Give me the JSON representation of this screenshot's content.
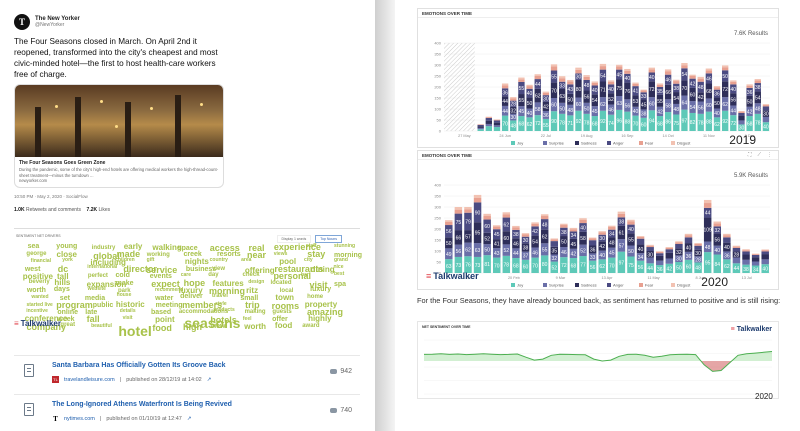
{
  "tweet": {
    "avatar": "T",
    "name": "The New Yorker",
    "handle": "@NewYorker",
    "text": "The Four Seasons closed in March. On April 2nd it reopened, transformed into the city's cheapest and most civic-minded hotel—the first to host health-care workers free of charge.",
    "card_title": "The Four Seasons Goes Green Zone",
    "card_desc": "During the pandemic, some of the city's high-end hotels are offering medical workers the high-thread-count-sheet treatment—minus the turndown ...",
    "card_domain": "newyorker.com",
    "meta": "10:50 PM · May 2, 2020 · SocialFlow",
    "retweets_num": "1.0K",
    "retweets_label": "Retweets and comments",
    "likes_num": "7.2K",
    "likes_label": "Likes"
  },
  "cloud": {
    "label": "SENTIMENT NET DRIVERS",
    "tab_inactive": "Display 1 words",
    "tab_active": "Top Nouns",
    "color": "#a8c24a",
    "words": [
      "sea",
      "george",
      "financial",
      "west",
      "positive",
      "beverly",
      "worth",
      "wanted",
      "started live",
      "incentive",
      "conference",
      "company",
      "young",
      "close",
      "york",
      "dc",
      "tall",
      "hills",
      "days",
      "set",
      "program",
      "online",
      "week",
      "great",
      "industry",
      "global",
      "including",
      "international",
      "perfect",
      "expansion",
      "website",
      "media",
      "public",
      "late",
      "fall",
      "beautiful",
      "early",
      "made",
      "children",
      "director",
      "cold",
      "make",
      "park",
      "house",
      "historic",
      "details",
      "visit",
      "hotel",
      "walking",
      "working",
      "gift",
      "service",
      "events",
      "expect",
      "recommend",
      "water",
      "meeting",
      "based",
      "point",
      "food",
      "space",
      "creek",
      "nights",
      "business",
      "care",
      "hope",
      "luxury",
      "deliver",
      "members",
      "accommodations",
      "seasons",
      "high",
      "access",
      "resorts",
      "country",
      "view",
      "day",
      "features",
      "morning",
      "travel",
      "style",
      "products",
      "hotels",
      "view",
      "real",
      "near",
      "area",
      "offering",
      "check",
      "design",
      "ritz",
      "small",
      "trip",
      "making",
      "feel",
      "worth",
      "experience",
      "views",
      "pool",
      "restaurants",
      "personal",
      "located",
      "local",
      "town",
      "rooms",
      "guests",
      "offer",
      "food",
      "staff",
      "stay",
      "city",
      "dining",
      "bar",
      "visit",
      "luxury",
      "home",
      "property",
      "amazing",
      "highly",
      "award",
      "stunning",
      "morning",
      "grand",
      "nice",
      "best",
      "spa"
    ]
  },
  "brand": {
    "name": "Talkwalker",
    "mark": "≡"
  },
  "articles": [
    {
      "title": "Santa Barbara Has Officially Gotten Its Groove Back",
      "fav": "TL",
      "source": "travelandleisure.com",
      "published": "published on 28/12/19 at 14:02",
      "ext": "↗",
      "count": "942"
    },
    {
      "title": "The Long-Ignored Athens Waterfront Is Being Revived",
      "fav": "T",
      "source": "nytimes.com",
      "published": "published on 01/10/19 at 12:47",
      "ext": "↗",
      "count": "740"
    }
  ],
  "chart1": {
    "title": "EMOTIONS OVER TIME",
    "results": "7.6K Results",
    "year": "2019"
  },
  "chart2": {
    "title": "EMOTIONS OVER TIME",
    "results": "5.9K Results",
    "year": "2020",
    "icons": [
      "expand-icon",
      "chart-type-icon",
      "more-icon"
    ]
  },
  "caption": "For the Four Seasons, they have already bounced back, as sentiment has returned to positive and is still rising:",
  "sentiment": {
    "title": "NET SENTIMENT OVER TIME",
    "year": "2020"
  },
  "chart_data": [
    {
      "type": "bar",
      "title": "EMOTIONS OVER TIME",
      "stacked": true,
      "ylim": [
        0,
        400
      ],
      "yticks": [
        0,
        50,
        100,
        150,
        200,
        250,
        300,
        350,
        400
      ],
      "x_labels": [
        "27 May",
        "24 Jun",
        "22 Jul",
        "19 Aug",
        "16 Sep",
        "14 Oct",
        "11 Nov",
        "9 Dec"
      ],
      "legend": [
        "Joy",
        "Surprise",
        "Sadness",
        "Anger",
        "Fear",
        "Disgust"
      ],
      "colors": [
        "#5ec9b8",
        "#6a6fa8",
        "#2e2e59",
        "#4b4b82",
        "#e8a090",
        "#f2c2b2"
      ],
      "legend_position": "bottom",
      "no_data_region": [
        0,
        3
      ],
      "bars": [
        [
          0,
          0,
          0,
          0,
          0,
          0
        ],
        [
          0,
          0,
          0,
          0,
          0,
          0
        ],
        [
          0,
          0,
          0,
          0,
          0,
          0
        ],
        [
          0,
          0,
          0,
          0,
          0,
          0
        ],
        [
          8,
          6,
          8,
          6,
          2,
          1
        ],
        [
          22,
          10,
          15,
          12,
          4,
          2
        ],
        [
          18,
          8,
          12,
          10,
          3,
          2
        ],
        [
          70,
          44,
          44,
          36,
          14,
          8
        ],
        [
          48,
          30,
          32,
          28,
          10,
          6
        ],
        [
          68,
          45,
          55,
          55,
          12,
          8
        ],
        [
          62,
          40,
          50,
          40,
          12,
          6
        ],
        [
          72,
          58,
          62,
          44,
          14,
          8
        ],
        [
          55,
          36,
          42,
          30,
          10,
          6
        ],
        [
          90,
          60,
          70,
          55,
          18,
          10
        ],
        [
          78,
          50,
          63,
          33,
          16,
          9
        ],
        [
          71,
          48,
          50,
          43,
          14,
          6
        ],
        [
          92,
          60,
          80,
          30,
          16,
          10
        ],
        [
          78,
          50,
          56,
          48,
          14,
          8
        ],
        [
          68,
          45,
          54,
          40,
          12,
          6
        ],
        [
          92,
          62,
          71,
          54,
          16,
          10
        ],
        [
          74,
          46,
          52,
          40,
          12,
          6
        ],
        [
          96,
          63,
          75,
          45,
          14,
          8
        ],
        [
          88,
          56,
          76,
          40,
          14,
          8
        ],
        [
          70,
          40,
          53,
          41,
          10,
          6
        ],
        [
          60,
          38,
          45,
          33,
          8,
          4
        ],
        [
          94,
          60,
          72,
          40,
          14,
          8
        ],
        [
          68,
          42,
          55,
          35,
          10,
          6
        ],
        [
          86,
          58,
          66,
          46,
          16,
          8
        ],
        [
          75,
          48,
          54,
          38,
          12,
          6
        ],
        [
          97,
          64,
          70,
          54,
          14,
          10
        ],
        [
          82,
          54,
          60,
          42,
          12,
          6
        ],
        [
          78,
          56,
          42,
          48,
          14,
          8
        ],
        [
          88,
          60,
          68,
          46,
          14,
          8
        ],
        [
          62,
          40,
          50,
          36,
          10,
          6
        ],
        [
          92,
          62,
          72,
          50,
          14,
          8
        ],
        [
          72,
          44,
          56,
          40,
          12,
          6
        ],
        [
          30,
          18,
          22,
          12,
          6,
          3
        ],
        [
          68,
          42,
          50,
          36,
          10,
          6
        ],
        [
          78,
          48,
          54,
          38,
          12,
          6
        ],
        [
          40,
          24,
          30,
          18,
          6,
          4
        ]
      ]
    },
    {
      "type": "bar",
      "title": "EMOTIONS OVER TIME",
      "stacked": true,
      "ylim": [
        0,
        400
      ],
      "yticks": [
        0,
        50,
        100,
        150,
        200,
        250,
        300,
        350,
        400
      ],
      "x_labels": [
        "2 Jan",
        "20 Feb",
        "9 Mar",
        "13 Apr",
        "11 May",
        "8 Jun",
        "13 Jul"
      ],
      "legend": [
        "Joy",
        "Surprise",
        "Sadness",
        "Anger",
        "Fear",
        "Disgust"
      ],
      "colors": [
        "#5ec9b8",
        "#6a6fa8",
        "#2e2e59",
        "#4b4b82",
        "#e8a090",
        "#f2c2b2"
      ],
      "legend_position": "bottom",
      "bars": [
        [
          63,
          49,
          50,
          56,
          14,
          8
        ],
        [
          73,
          56,
          66,
          75,
          18,
          12
        ],
        [
          76,
          62,
          57,
          79,
          16,
          10
        ],
        [
          73,
          63,
          95,
          90,
          20,
          14
        ],
        [
          81,
          50,
          52,
          60,
          16,
          10
        ],
        [
          70,
          43,
          41,
          45,
          12,
          6
        ],
        [
          78,
          52,
          60,
          62,
          14,
          10
        ],
        [
          68,
          44,
          46,
          38,
          12,
          6
        ],
        [
          60,
          37,
          38,
          30,
          10,
          6
        ],
        [
          70,
          46,
          54,
          42,
          12,
          6
        ],
        [
          80,
          55,
          62,
          48,
          14,
          8
        ],
        [
          52,
          32,
          35,
          26,
          8,
          4
        ],
        [
          72,
          46,
          50,
          38,
          12,
          6
        ],
        [
          68,
          42,
          45,
          34,
          10,
          6
        ],
        [
          77,
          52,
          58,
          40,
          14,
          8
        ],
        [
          56,
          33,
          36,
          24,
          8,
          4
        ],
        [
          62,
          40,
          42,
          30,
          10,
          6
        ],
        [
          70,
          45,
          48,
          34,
          12,
          6
        ],
        [
          97,
          57,
          61,
          38,
          16,
          10
        ],
        [
          75,
          50,
          55,
          40,
          14,
          8
        ],
        [
          56,
          34,
          40,
          26,
          8,
          4
        ],
        [
          44,
          26,
          30,
          18,
          6,
          4
        ],
        [
          36,
          20,
          22,
          12,
          6,
          3
        ],
        [
          42,
          24,
          26,
          16,
          6,
          4
        ],
        [
          50,
          30,
          32,
          20,
          8,
          4
        ],
        [
          60,
          36,
          40,
          26,
          10,
          6
        ],
        [
          48,
          28,
          30,
          18,
          8,
          4
        ],
        [
          95,
          48,
          109,
          44,
          22,
          14
        ],
        [
          84,
          40,
          56,
          32,
          14,
          8
        ],
        [
          62,
          36,
          40,
          24,
          10,
          6
        ],
        [
          44,
          26,
          28,
          16,
          6,
          4
        ],
        [
          38,
          22,
          24,
          14,
          6,
          4
        ],
        [
          34,
          18,
          20,
          10,
          4,
          2
        ],
        [
          40,
          22,
          24,
          12,
          6,
          3
        ]
      ]
    },
    {
      "type": "area",
      "title": "NET SENTIMENT OVER TIME",
      "ylim": [
        -1,
        1
      ],
      "colors_positive": "#7ed17e",
      "colors_negative": "#d46a6a",
      "values": [
        0.35,
        0.36,
        0.38,
        0.35,
        0.37,
        0.34,
        0.36,
        0.38,
        0.36,
        0.34,
        0.35,
        0.37,
        0.2,
        0.05,
        0.1,
        0.3,
        0.36,
        0.35,
        0.34,
        0.33,
        0.1,
        0.0,
        0.05,
        0.25,
        0.35,
        0.36,
        0.3,
        0.2,
        0.25,
        0.33,
        0.35,
        0.36,
        0.34,
        -0.2,
        -0.55,
        -0.5,
        -0.1,
        0.3,
        0.38,
        0.42,
        0.46,
        0.5
      ]
    }
  ]
}
